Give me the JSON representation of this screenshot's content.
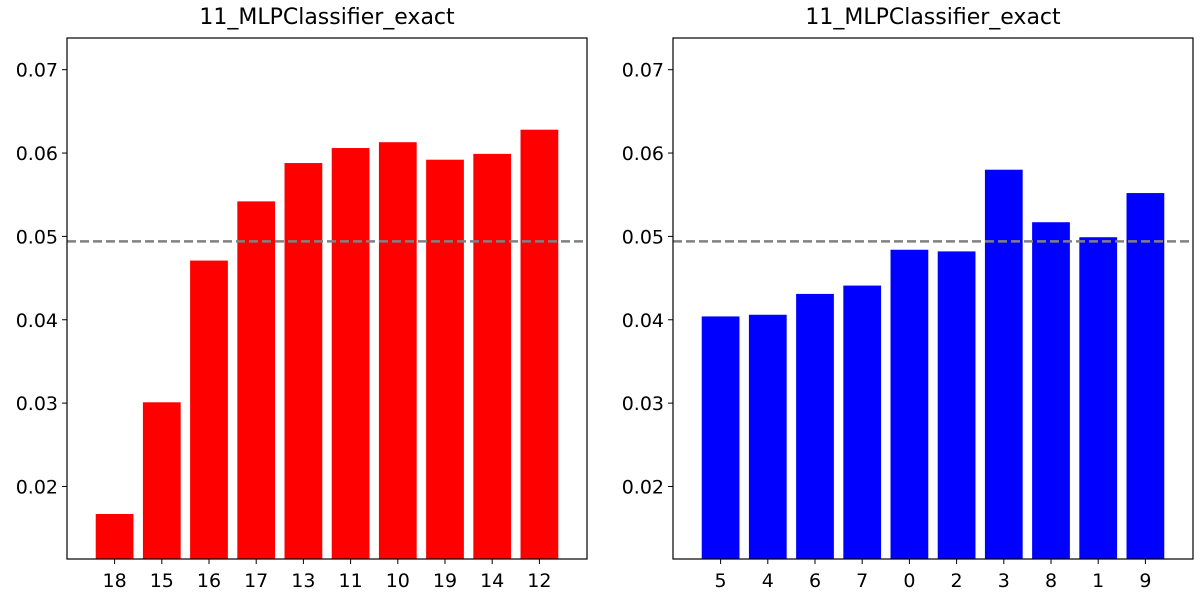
{
  "chart_data": [
    {
      "type": "bar",
      "title": "11_MLPClassifier_exact",
      "xlabel": "",
      "ylabel": "",
      "categories": [
        "18",
        "15",
        "16",
        "17",
        "13",
        "11",
        "10",
        "19",
        "14",
        "12"
      ],
      "values": [
        0.0167,
        0.0301,
        0.0471,
        0.0542,
        0.0588,
        0.0606,
        0.0613,
        0.0592,
        0.0599,
        0.0628
      ],
      "ylim": [
        0.0113,
        0.0738
      ],
      "yticks": [
        "0.02",
        "0.03",
        "0.04",
        "0.05",
        "0.06",
        "0.07"
      ],
      "reference_line": 0.0494,
      "bar_color": "#ff0000",
      "reference_color": "#808080",
      "grid": false
    },
    {
      "type": "bar",
      "title": "11_MLPClassifier_exact",
      "xlabel": "",
      "ylabel": "",
      "categories": [
        "5",
        "4",
        "6",
        "7",
        "0",
        "2",
        "3",
        "8",
        "1",
        "9"
      ],
      "values": [
        0.0404,
        0.0406,
        0.0431,
        0.0441,
        0.0484,
        0.0482,
        0.058,
        0.0517,
        0.0499,
        0.0552
      ],
      "ylim": [
        0.0113,
        0.0738
      ],
      "yticks": [
        "0.02",
        "0.03",
        "0.04",
        "0.05",
        "0.06",
        "0.07"
      ],
      "reference_line": 0.0494,
      "bar_color": "#0000ff",
      "reference_color": "#808080",
      "grid": false
    }
  ]
}
